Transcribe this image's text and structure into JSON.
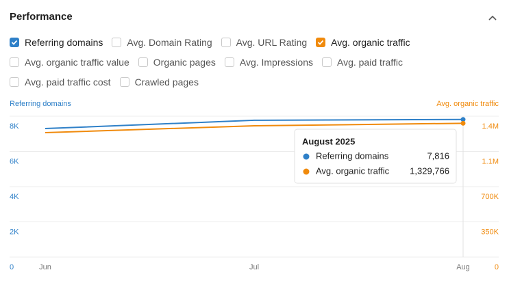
{
  "header": {
    "title": "Performance"
  },
  "checkboxes": [
    {
      "label": "Referring domains",
      "checked": true,
      "color": "#2f80c8"
    },
    {
      "label": "Avg. Domain Rating",
      "checked": false
    },
    {
      "label": "Avg. URL Rating",
      "checked": false
    },
    {
      "label": "Avg. organic traffic",
      "checked": true,
      "color": "#f08a0c"
    },
    {
      "label": "Avg. organic traffic value",
      "checked": false
    },
    {
      "label": "Organic pages",
      "checked": false
    },
    {
      "label": "Avg. Impressions",
      "checked": false
    },
    {
      "label": "Avg. paid traffic",
      "checked": false
    },
    {
      "label": "Avg. paid traffic cost",
      "checked": false
    },
    {
      "label": "Crawled pages",
      "checked": false
    }
  ],
  "chart_data": {
    "type": "line",
    "y_label": "Referring domains",
    "y2_label": "Avg. organic traffic",
    "categories": [
      "Jun",
      "Jul",
      "Aug"
    ],
    "series": [
      {
        "name": "Referring domains",
        "color": "#2f80c8",
        "values": [
          7300,
          7770,
          7816
        ],
        "value_labels": [
          null,
          null,
          "7,816"
        ]
      },
      {
        "name": "Avg. organic traffic",
        "color": "#f08a0c",
        "axis": "y2",
        "values": [
          1237000,
          1305000,
          1329766
        ],
        "value_labels": [
          null,
          null,
          "1,329,766"
        ]
      }
    ],
    "ylim": [
      0,
      8000
    ],
    "yticks": [
      0,
      {
        "value": 2000,
        "label": "2K"
      },
      {
        "value": 4000,
        "label": "4K"
      },
      {
        "value": 6000,
        "label": "6K"
      },
      {
        "value": 8000,
        "label": "8K"
      }
    ],
    "y2lim": [
      0,
      1400000
    ],
    "y2ticks": [
      0,
      {
        "value": 350000,
        "label": "350K"
      },
      {
        "value": 700000,
        "label": "700K"
      },
      {
        "value": 1050000,
        "label": "1.1M"
      },
      {
        "value": 1400000,
        "label": "1.4M"
      }
    ],
    "grid": true,
    "tooltip": {
      "title": "August 2025",
      "index": 2
    }
  }
}
